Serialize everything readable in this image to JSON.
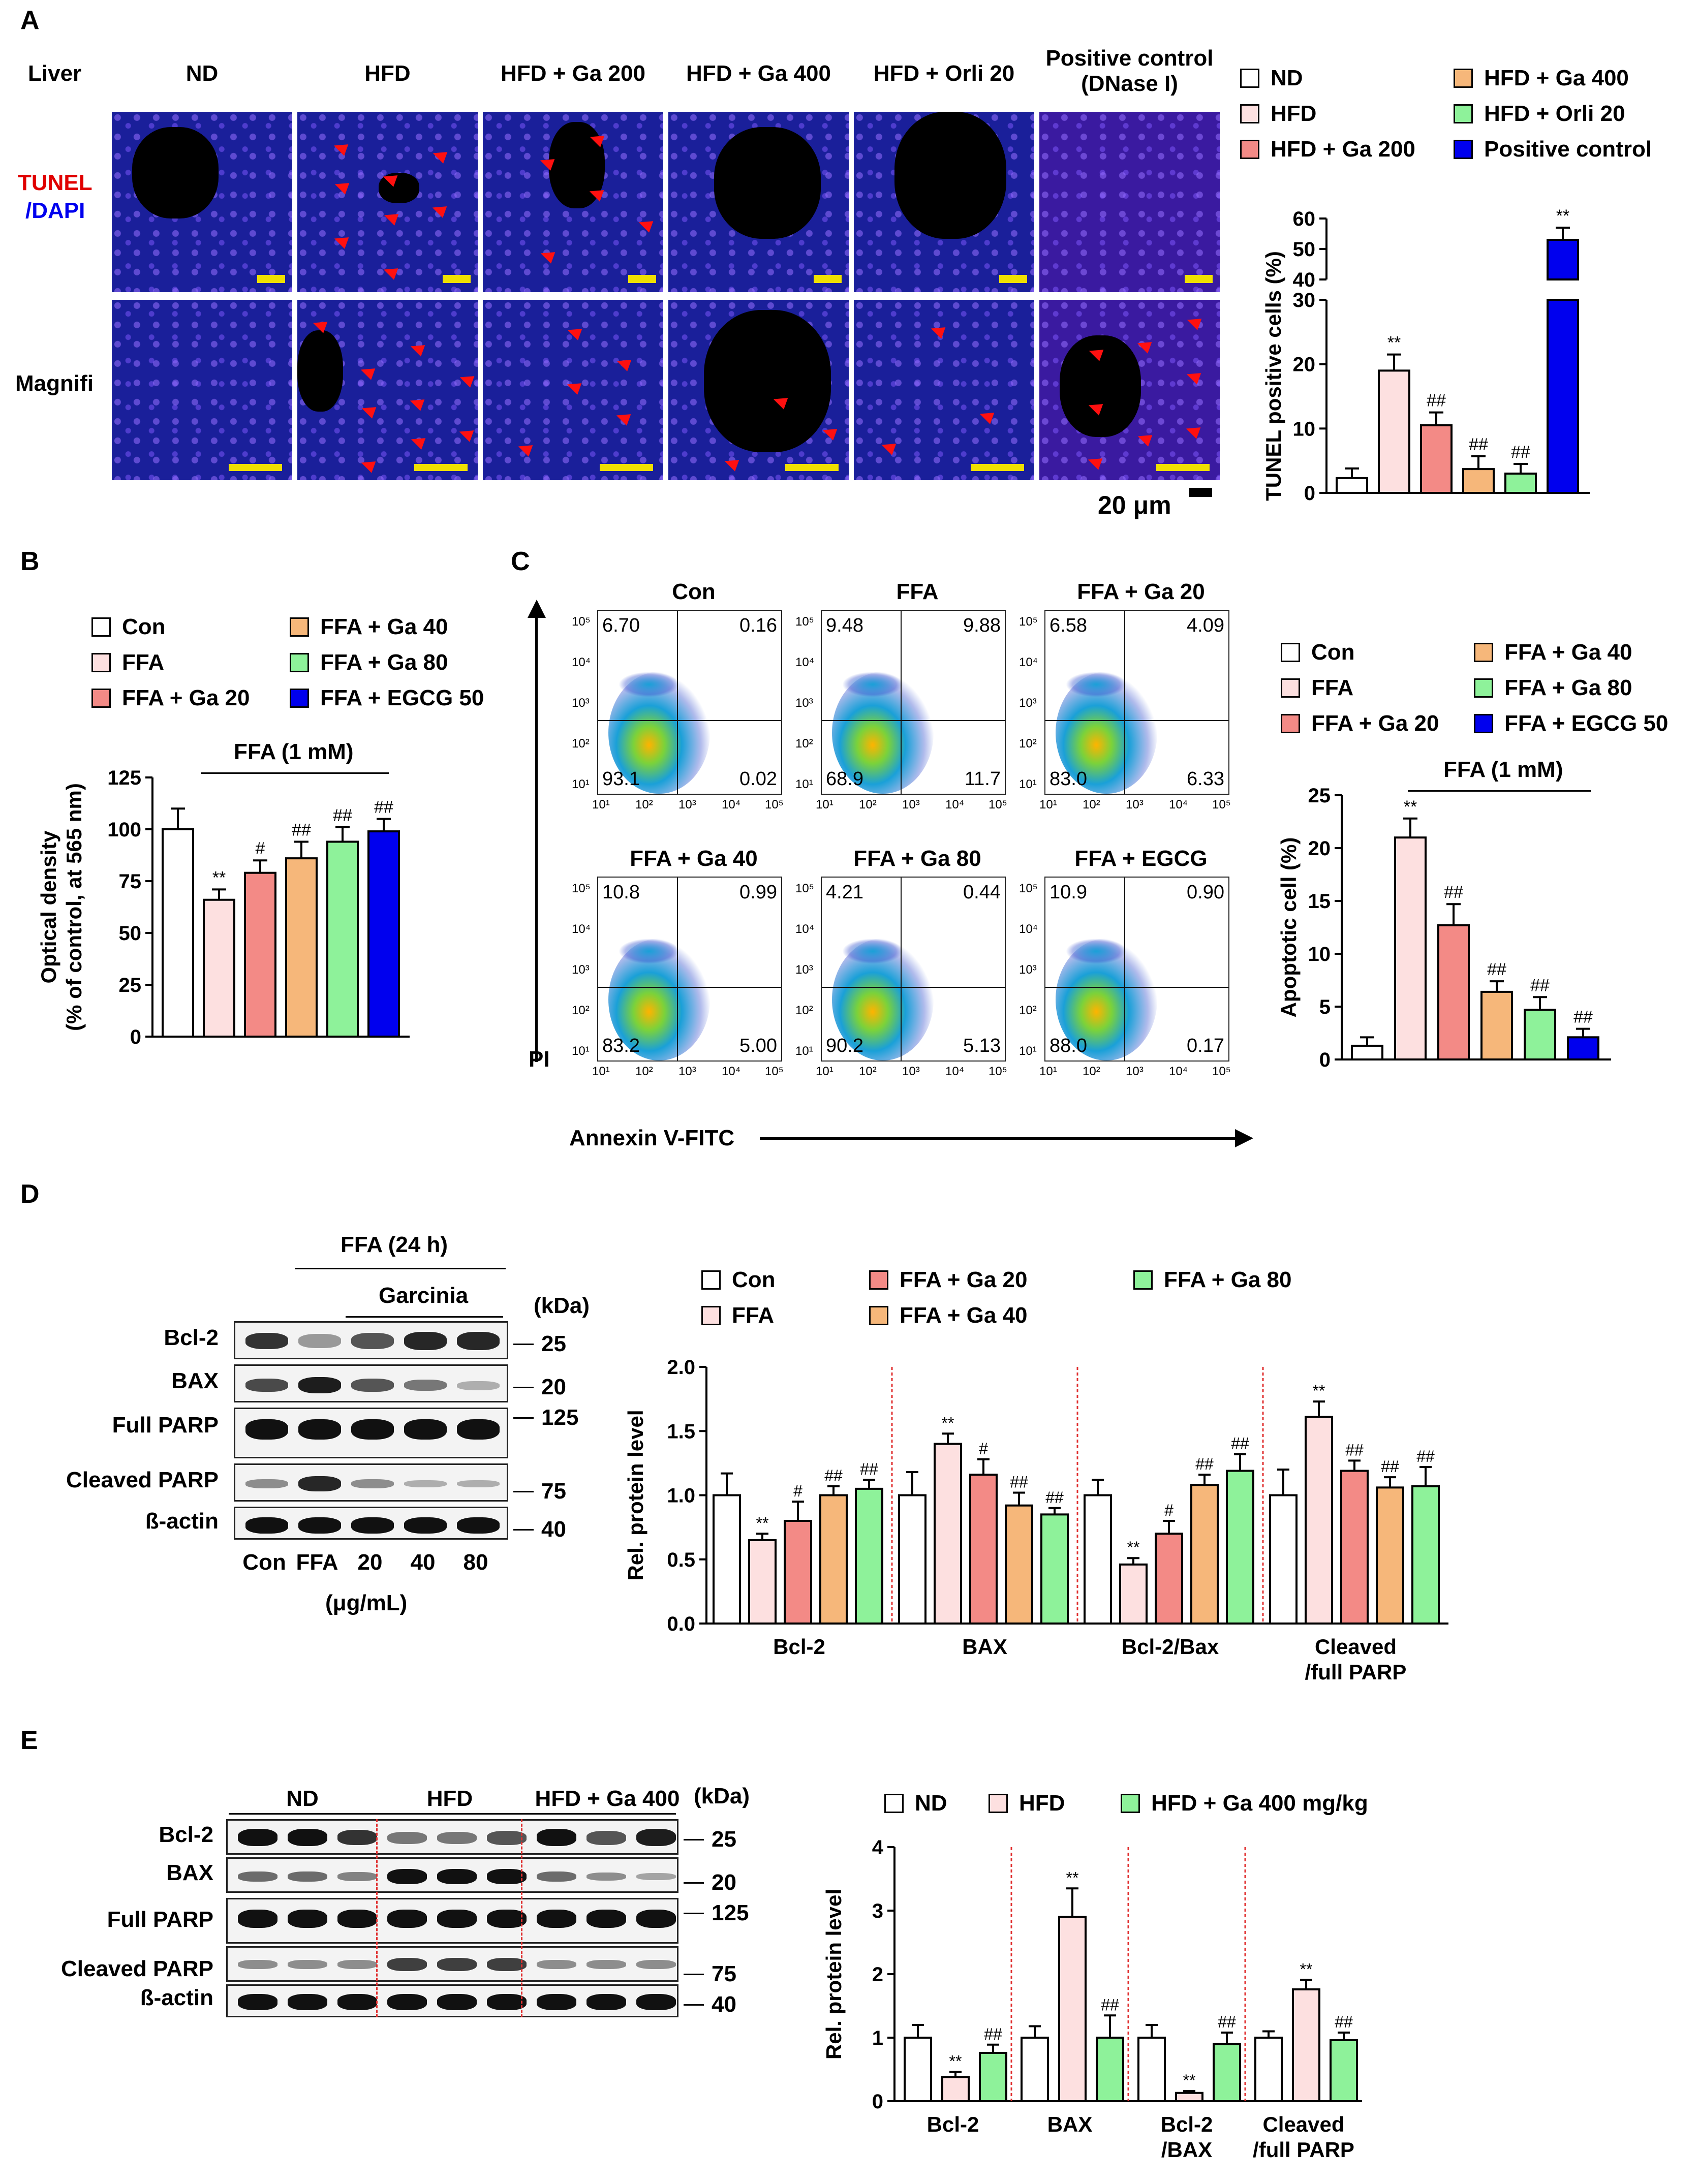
{
  "panelA": {
    "letter": "A",
    "row_label": "Liver",
    "columns": [
      "ND",
      "HFD",
      "HFD + Ga 200",
      "HFD + Ga 400",
      "HFD + Orli 20",
      "Positive control\n(DNase I)"
    ],
    "stain_tunel": "TUNEL",
    "stain_dapi": "/DAPI",
    "row2_label": "Magnifi",
    "scale_text": "20 μm",
    "legend": [
      "ND",
      "HFD",
      "HFD + Ga 200",
      "HFD + Ga 400",
      "HFD + Orli 20",
      "Positive control"
    ]
  },
  "panelB": {
    "letter": "B",
    "legend": [
      "Con",
      "FFA",
      "FFA + Ga 20",
      "FFA + Ga 40",
      "FFA + Ga 80",
      "FFA + EGCG 50"
    ],
    "bracket": "FFA (1 mM)"
  },
  "panelC": {
    "letter": "C",
    "plots": [
      {
        "title": "Con",
        "ul": "6.70",
        "ur": "0.16",
        "ll": "93.1",
        "lr": "0.02"
      },
      {
        "title": "FFA",
        "ul": "9.48",
        "ur": "9.88",
        "ll": "68.9",
        "lr": "11.7"
      },
      {
        "title": "FFA + Ga 20",
        "ul": "6.58",
        "ur": "4.09",
        "ll": "83.0",
        "lr": "6.33"
      },
      {
        "title": "FFA + Ga 40",
        "ul": "10.8",
        "ur": "0.99",
        "ll": "83.2",
        "lr": "5.00"
      },
      {
        "title": "FFA + Ga 80",
        "ul": "4.21",
        "ur": "0.44",
        "ll": "90.2",
        "lr": "5.13"
      },
      {
        "title": "FFA + EGCG",
        "ul": "10.9",
        "ur": "0.90",
        "ll": "88.0",
        "lr": "0.17"
      }
    ],
    "yaxis": "PI",
    "xaxis": "Annexin V-FITC",
    "legend": [
      "Con",
      "FFA",
      "FFA + Ga 20",
      "FFA + Ga 40",
      "FFA + Ga 80",
      "FFA + EGCG 50"
    ],
    "bracket": "FFA (1 mM)"
  },
  "panelD": {
    "letter": "D",
    "ffa": "FFA (24 h)",
    "garcinia": "Garcinia",
    "kda": "(kDa)",
    "rows": [
      "Bcl-2",
      "BAX",
      "Full PARP",
      "Cleaved PARP",
      "ß-actin"
    ],
    "markers": [
      "25",
      "20",
      "125",
      "75",
      "40"
    ],
    "lanes": [
      "Con",
      "FFA",
      "20",
      "40",
      "80"
    ],
    "unit": "(μg/mL)",
    "legend": [
      "Con",
      "FFA",
      "FFA + Ga 20",
      "FFA + Ga 40",
      "FFA + Ga 80"
    ]
  },
  "panelE": {
    "letter": "E",
    "groups": [
      "ND",
      "HFD",
      "HFD + Ga 400"
    ],
    "kda": "(kDa)",
    "rows": [
      "Bcl-2",
      "BAX",
      "Full PARP",
      "Cleaved PARP",
      "ß-actin"
    ],
    "markers": [
      "25",
      "20",
      "125",
      "75",
      "40"
    ],
    "legend": [
      "ND",
      "HFD",
      "HFD + Ga 400 mg/kg"
    ]
  },
  "colors": {
    "white": "#ffffff",
    "pink": "#fde0e0",
    "salmon": "#f38a86",
    "orange": "#f6b77a",
    "green": "#8ef29a",
    "blue": "#0000ee"
  },
  "chart_data": [
    {
      "id": "A",
      "type": "bar",
      "categories": [
        "ND",
        "HFD",
        "HFD + Ga 200",
        "HFD + Ga 400",
        "HFD + Orli 20",
        "Positive control"
      ],
      "values": [
        2.3,
        19.0,
        10.5,
        3.7,
        3.0,
        53.0
      ],
      "errors": [
        1.5,
        2.5,
        2.0,
        2.0,
        1.5,
        4.0
      ],
      "marks": [
        "",
        "**",
        "##",
        "##",
        "##",
        "**"
      ],
      "ylabel": "TUNEL positive cells (%)",
      "y_broken": true,
      "yticks_lower": [
        0,
        10,
        20,
        30
      ],
      "yticks_upper": [
        40,
        50,
        60
      ]
    },
    {
      "id": "B",
      "type": "bar",
      "categories": [
        "Con",
        "FFA",
        "FFA + Ga 20",
        "FFA + Ga 40",
        "FFA + Ga 80",
        "FFA + EGCG 50"
      ],
      "values": [
        100,
        66,
        79,
        86,
        94,
        99
      ],
      "errors": [
        10,
        5,
        6,
        8,
        7,
        6
      ],
      "marks": [
        "",
        "**",
        "#",
        "##",
        "##",
        "##"
      ],
      "ylabel": "Optical density\n(% of control, at 565 nm)",
      "ylim": [
        0,
        125
      ],
      "yticks": [
        0,
        25,
        50,
        75,
        100,
        125
      ]
    },
    {
      "id": "C",
      "type": "bar",
      "categories": [
        "Con",
        "FFA",
        "FFA + Ga 20",
        "FFA + Ga 40",
        "FFA + Ga 80",
        "FFA + EGCG 50"
      ],
      "values": [
        1.3,
        21.0,
        12.7,
        6.4,
        4.7,
        2.1
      ],
      "errors": [
        0.8,
        1.8,
        2.0,
        1.0,
        1.2,
        0.8
      ],
      "marks": [
        "",
        "**",
        "##",
        "##",
        "##",
        "##"
      ],
      "ylabel": "Apoptotic cell (%)",
      "ylim": [
        0,
        25
      ],
      "yticks": [
        0,
        5,
        10,
        15,
        20,
        25
      ]
    },
    {
      "id": "D",
      "type": "bar",
      "categories": [
        "Bcl-2",
        "BAX",
        "Bcl-2/Bax",
        "Cleaved\n/full PARP"
      ],
      "series": [
        {
          "name": "Con",
          "values": [
            1.0,
            1.0,
            1.0,
            1.0
          ],
          "errors": [
            0.17,
            0.18,
            0.12,
            0.2
          ],
          "marks": [
            "",
            "",
            "",
            ""
          ]
        },
        {
          "name": "FFA",
          "values": [
            0.65,
            1.4,
            0.46,
            1.61
          ],
          "errors": [
            0.05,
            0.08,
            0.05,
            0.12
          ],
          "marks": [
            "**",
            "**",
            "**",
            "**"
          ]
        },
        {
          "name": "FFA + Ga 20",
          "values": [
            0.8,
            1.16,
            0.7,
            1.19
          ],
          "errors": [
            0.15,
            0.12,
            0.1,
            0.08
          ],
          "marks": [
            "#",
            "#",
            "#",
            "##"
          ]
        },
        {
          "name": "FFA + Ga 40",
          "values": [
            1.0,
            0.92,
            1.08,
            1.06
          ],
          "errors": [
            0.07,
            0.1,
            0.08,
            0.08
          ],
          "marks": [
            "##",
            "##",
            "##",
            "##"
          ]
        },
        {
          "name": "FFA + Ga 80",
          "values": [
            1.05,
            0.85,
            1.19,
            1.07
          ],
          "errors": [
            0.07,
            0.05,
            0.13,
            0.15
          ],
          "marks": [
            "##",
            "##",
            "##",
            "##"
          ]
        }
      ],
      "ylabel": "Rel. protein level",
      "ylim": [
        0,
        2.0
      ],
      "yticks": [
        "0.0",
        "0.5",
        "1.0",
        "1.5",
        "2.0"
      ]
    },
    {
      "id": "E",
      "type": "bar",
      "categories": [
        "Bcl-2",
        "BAX",
        "Bcl-2\n/BAX",
        "Cleaved\n/full PARP"
      ],
      "series": [
        {
          "name": "ND",
          "values": [
            1.0,
            1.0,
            1.0,
            1.0
          ],
          "errors": [
            0.2,
            0.18,
            0.2,
            0.1
          ],
          "marks": [
            "",
            "",
            "",
            ""
          ]
        },
        {
          "name": "HFD",
          "values": [
            0.38,
            2.9,
            0.13,
            1.76
          ],
          "errors": [
            0.08,
            0.45,
            0.03,
            0.15
          ],
          "marks": [
            "**",
            "**",
            "**",
            "**"
          ]
        },
        {
          "name": "HFD + Ga 400 mg/kg",
          "values": [
            0.76,
            1.0,
            0.9,
            0.96
          ],
          "errors": [
            0.13,
            0.35,
            0.18,
            0.12
          ],
          "marks": [
            "##",
            "##",
            "##",
            "##"
          ]
        }
      ],
      "ylabel": "Rel. protein level",
      "ylim": [
        0,
        4
      ],
      "yticks": [
        0,
        1,
        2,
        3,
        4
      ]
    }
  ]
}
